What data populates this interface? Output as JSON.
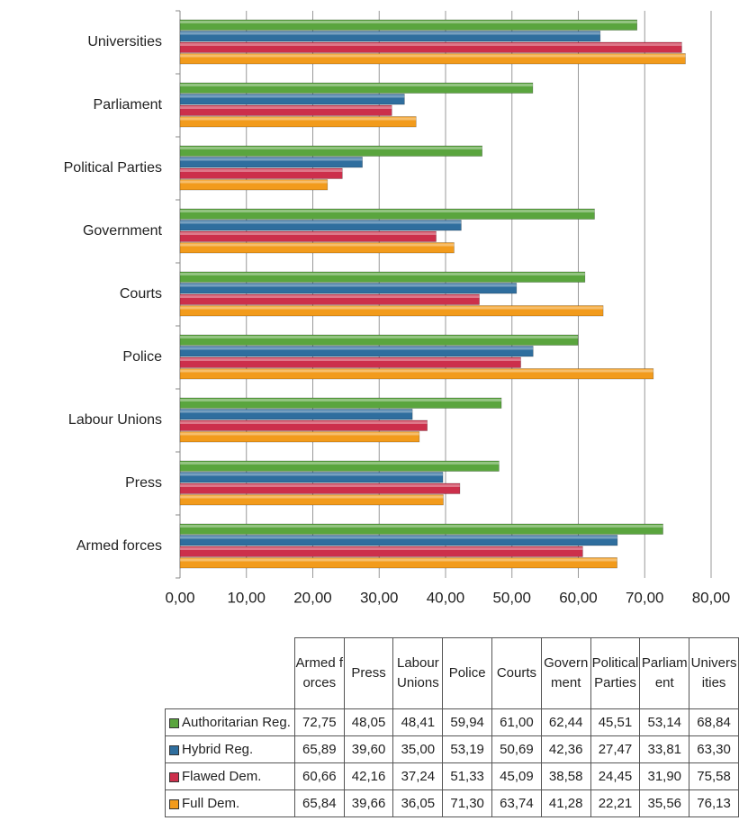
{
  "chart_data": {
    "type": "bar",
    "orientation": "horizontal",
    "categories": [
      "Armed forces",
      "Press",
      "Labour Unions",
      "Police",
      "Courts",
      "Government",
      "Political Parties",
      "Parliament",
      "Universities"
    ],
    "series": [
      {
        "name": "Authoritarian Reg.",
        "color": "#5aa53e",
        "values": [
          72.75,
          48.05,
          48.41,
          59.94,
          61.0,
          62.44,
          45.51,
          53.14,
          68.84
        ],
        "value_labels": [
          "72,75",
          "48,05",
          "48,41",
          "59,94",
          "61,00",
          "62,44",
          "45,51",
          "53,14",
          "68,84"
        ]
      },
      {
        "name": "Hybrid Reg.",
        "color": "#2f6e9e",
        "values": [
          65.89,
          39.6,
          35.0,
          53.19,
          50.69,
          42.36,
          27.47,
          33.81,
          63.3
        ],
        "value_labels": [
          "65,89",
          "39,60",
          "35,00",
          "53,19",
          "50,69",
          "42,36",
          "27,47",
          "33,81",
          "63,30"
        ]
      },
      {
        "name": "Flawed Dem.",
        "color": "#cc2f4b",
        "values": [
          60.66,
          42.16,
          37.24,
          51.33,
          45.09,
          38.58,
          24.45,
          31.9,
          75.58
        ],
        "value_labels": [
          "60,66",
          "42,16",
          "37,24",
          "51,33",
          "45,09",
          "38,58",
          "24,45",
          "31,90",
          "75,58"
        ]
      },
      {
        "name": "Full Dem.",
        "color": "#f29b1c",
        "values": [
          65.84,
          39.66,
          36.05,
          71.3,
          63.74,
          41.28,
          22.21,
          35.56,
          76.13
        ],
        "value_labels": [
          "65,84",
          "39,66",
          "36,05",
          "71,30",
          "63,74",
          "41,28",
          "22,21",
          "35,56",
          "76,13"
        ]
      }
    ],
    "xlim": [
      0,
      80
    ],
    "xticks": [
      {
        "value": 0,
        "label": "0,00"
      },
      {
        "value": 10,
        "label": "10,00"
      },
      {
        "value": 20,
        "label": "20,00"
      },
      {
        "value": 30,
        "label": "30,00"
      },
      {
        "value": 40,
        "label": "40,00"
      },
      {
        "value": 50,
        "label": "50,00"
      },
      {
        "value": 60,
        "label": "60,00"
      },
      {
        "value": 70,
        "label": "70,00"
      },
      {
        "value": 80,
        "label": "80,00"
      }
    ],
    "grid": true
  }
}
